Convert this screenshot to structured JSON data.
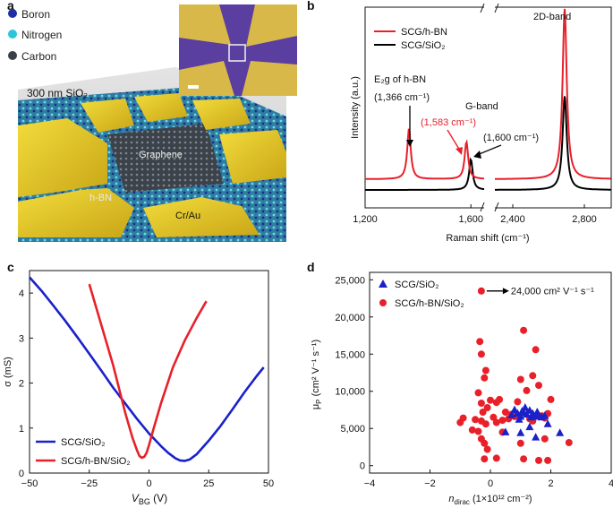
{
  "panels": {
    "a": {
      "label": "a",
      "legend": [
        {
          "name": "Boron",
          "color": "#1e2fa6"
        },
        {
          "name": "Nitrogen",
          "color": "#2cc6d8"
        },
        {
          "name": "Carbon",
          "color": "#3a3f46"
        }
      ],
      "substrate_label": "300 nm SiO₂",
      "graphene_label": "Graphene",
      "hbn_label": "h-BN",
      "contact_label": "Cr/Au"
    },
    "b": {
      "label": "b"
    },
    "c": {
      "label": "c"
    },
    "d": {
      "label": "d"
    }
  },
  "colors": {
    "red": "#e8202a",
    "blue": "#1a21c9",
    "black": "#000000"
  },
  "chart_data": [
    {
      "id": "raman",
      "type": "line",
      "xlabel": "Raman shift (cm⁻¹)",
      "ylabel": "Intensity (a.u.)",
      "broken_axis": {
        "segment1": [
          1200,
          1650
        ],
        "segment2": [
          2300,
          2950
        ]
      },
      "xticks": [
        "1,200",
        "1,600",
        "2,400",
        "2,800"
      ],
      "series": [
        {
          "name": "SCG/h-BN",
          "color": "#e8202a",
          "peaks": [
            {
              "x": 1366,
              "h": 0.3
            },
            {
              "x": 1583,
              "h": 0.22
            },
            {
              "x": 2690,
              "h": 1.0
            }
          ]
        },
        {
          "name": "SCG/SiO₂",
          "color": "#000000",
          "peaks": [
            {
              "x": 1600,
              "h": 0.18
            },
            {
              "x": 2690,
              "h": 0.55
            }
          ]
        }
      ],
      "annotations": {
        "hbn": "E₂g of h-BN",
        "hbn_value": "(1,366 cm⁻¹)",
        "gband": "G-band",
        "red_value": "(1,583 cm⁻¹)",
        "black_value": "(1,600 cm⁻¹)",
        "twod": "2D-band"
      }
    },
    {
      "id": "conductivity",
      "type": "line",
      "xlabel": "V",
      "xlabel_sub": "BG",
      "xlabel_unit": " (V)",
      "ylabel": "σ (mS)",
      "xlim": [
        -50,
        50
      ],
      "ylim": [
        0,
        4.5
      ],
      "xticks": [
        -50,
        -25,
        0,
        25,
        50
      ],
      "yticks": [
        0,
        1,
        2,
        3,
        4
      ],
      "series": [
        {
          "name": "SCG/SiO₂",
          "color": "#1a21c9",
          "x": [
            -50,
            -45,
            -40,
            -35,
            -30,
            -25,
            -20,
            -15,
            -10,
            -5,
            0,
            5,
            8,
            11,
            13,
            15,
            17,
            20,
            25,
            30,
            35,
            40,
            45,
            48
          ],
          "y": [
            4.35,
            4.05,
            3.72,
            3.38,
            3.02,
            2.65,
            2.28,
            1.9,
            1.55,
            1.2,
            0.88,
            0.6,
            0.45,
            0.33,
            0.28,
            0.27,
            0.3,
            0.42,
            0.72,
            1.05,
            1.42,
            1.8,
            2.15,
            2.35
          ]
        },
        {
          "name": "SCG/h-BN/SiO₂",
          "color": "#e8202a",
          "x": [
            -25,
            -20,
            -15,
            -10,
            -7,
            -5,
            -4,
            -3,
            -2,
            -1,
            0,
            2,
            5,
            10,
            15,
            20,
            24
          ],
          "y": [
            4.2,
            3.3,
            2.4,
            1.35,
            0.8,
            0.5,
            0.38,
            0.34,
            0.36,
            0.45,
            0.62,
            1.0,
            1.55,
            2.35,
            2.95,
            3.45,
            3.82
          ]
        }
      ]
    },
    {
      "id": "mobility",
      "type": "scatter",
      "xlabel": "n",
      "xlabel_sub": "dirac",
      "xlabel_unit": " (1×10¹² cm⁻²)",
      "ylabel": "μ",
      "ylabel_sub": "P",
      "ylabel_unit": " (cm² V⁻¹ s⁻¹)",
      "xlim": [
        -4,
        4
      ],
      "ylim": [
        -1000,
        26000
      ],
      "xticks": [
        -4,
        -2,
        0,
        2,
        4
      ],
      "yticks": [
        0,
        5000,
        10000,
        15000,
        20000,
        25000
      ],
      "ytick_labels": [
        "0",
        "5,000",
        "10,000",
        "15,000",
        "20,000",
        "25,000"
      ],
      "series": [
        {
          "name": "SCG/SiO₂",
          "color": "#1a21c9",
          "marker": "triangle",
          "x": [
            0.5,
            0.7,
            0.8,
            0.9,
            0.95,
            1.0,
            1.05,
            1.1,
            1.15,
            1.2,
            1.3,
            1.35,
            1.4,
            1.5,
            1.55,
            1.6,
            1.7,
            1.8,
            1.3,
            1.0,
            1.5,
            2.3,
            1.9
          ],
          "y": [
            4500,
            6800,
            7500,
            7000,
            6200,
            6600,
            7300,
            7100,
            7800,
            6900,
            7400,
            6500,
            7000,
            6600,
            7200,
            6800,
            6500,
            6700,
            5200,
            4400,
            3800,
            4400,
            5600
          ]
        },
        {
          "name": "SCG/h-BN/SiO₂",
          "color": "#e8202a",
          "marker": "circle",
          "x": [
            -0.35,
            -0.3,
            -0.15,
            -0.2,
            -0.4,
            -0.3,
            -0.1,
            -0.25,
            -0.5,
            -0.3,
            -0.15,
            -0.9,
            -1.0,
            -0.6,
            -0.4,
            -0.3,
            -0.2,
            -0.1,
            0.0,
            0.2,
            0.3,
            0.5,
            0.7,
            0.1,
            0.4,
            0.6,
            0.8,
            0.2,
            0.4,
            0.9,
            1.1,
            1.0,
            1.2,
            1.4,
            1.5,
            1.6,
            1.7,
            1.8,
            1.9,
            2.0,
            1.3,
            1.4,
            2.6,
            1.8,
            1.0,
            1.6,
            1.9,
            1.1,
            0.2,
            -0.2
          ],
          "y": [
            16700,
            15000,
            12800,
            11800,
            9800,
            8400,
            7800,
            7200,
            6200,
            6000,
            5600,
            6400,
            5800,
            4800,
            4600,
            3600,
            3000,
            2200,
            8800,
            8500,
            8900,
            7200,
            6900,
            6500,
            6100,
            6300,
            6600,
            5800,
            4500,
            8600,
            18200,
            11600,
            10100,
            12100,
            15600,
            10800,
            6700,
            6400,
            7000,
            8900,
            6300,
            6000,
            3100,
            3600,
            3000,
            700,
            700,
            900,
            1000,
            900
          ]
        }
      ],
      "annotation": {
        "x": -0.3,
        "y": 23500,
        "text": "24,000 cm² V⁻¹ s⁻¹"
      }
    }
  ]
}
